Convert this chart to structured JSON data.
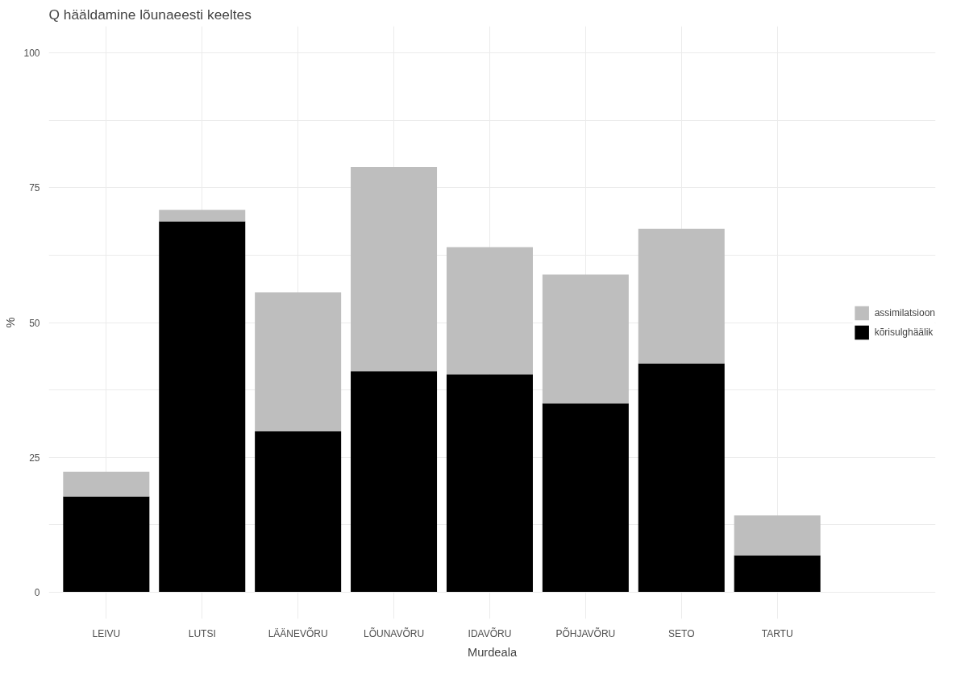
{
  "chart_data": {
    "type": "bar",
    "title": "Q hääldamine lõunaeesti keeltes",
    "xlabel": "Murdeala",
    "ylabel": "%",
    "categories": [
      "LEIVU",
      "LUTSI",
      "LÄÄNEVÕRU",
      "LÕUNAVÕRU",
      "IDAVÕRU",
      "PÕHJAVÕRU",
      "SETO",
      "TARTU"
    ],
    "stacked": true,
    "series": [
      {
        "name": "kõrisulghäälik",
        "color": "#000000",
        "values": [
          17.7,
          68.8,
          29.8,
          41.0,
          40.4,
          35.0,
          42.4,
          6.8
        ]
      },
      {
        "name": "assimilatsioon",
        "color": "#bebebe",
        "values": [
          4.6,
          2.1,
          25.8,
          37.9,
          23.6,
          23.9,
          25.0,
          7.4
        ]
      }
    ],
    "ylim": [
      -5,
      105
    ],
    "yticks": [
      0,
      {
        "value": 12.5,
        "label": null
      },
      25,
      {
        "value": 37.5,
        "label": null
      },
      50,
      {
        "value": 62.5,
        "label": null
      },
      75,
      {
        "value": 87.5,
        "label": null
      },
      100
    ],
    "grid": true,
    "legend": "right"
  }
}
